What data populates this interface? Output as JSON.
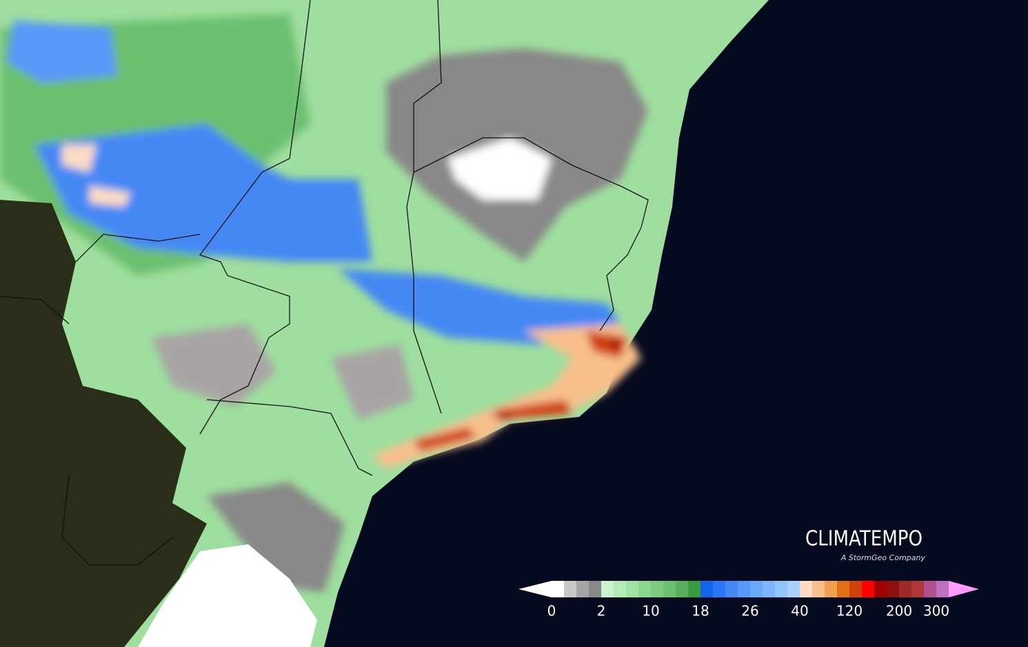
{
  "logo": {
    "name": "CLIMATEMPO",
    "tagline": "A StormGeo Company"
  },
  "legend": {
    "ticks": [
      0,
      2,
      10,
      18,
      26,
      40,
      120,
      200,
      300
    ],
    "colors": [
      "#ffffff",
      "#c8c8c8",
      "#a8a4a4",
      "#888888",
      "#c8f5cf",
      "#b4ecb8",
      "#a0e2a4",
      "#8cd690",
      "#7ccc80",
      "#6cc070",
      "#58b05c",
      "#3a9a40",
      "#1464f0",
      "#2c78f4",
      "#4488f4",
      "#5898f8",
      "#6ca8f8",
      "#80b4fa",
      "#94c4fc",
      "#a8d0fc",
      "#fcdcc4",
      "#f8c08c",
      "#f0a050",
      "#e07018",
      "#d04008",
      "#ff0000",
      "#a00000",
      "#901010",
      "#a02828",
      "#b03838",
      "#b05090",
      "#c070c0"
    ],
    "low_color": "#ffffff",
    "high_color": "#ff99ff"
  }
}
